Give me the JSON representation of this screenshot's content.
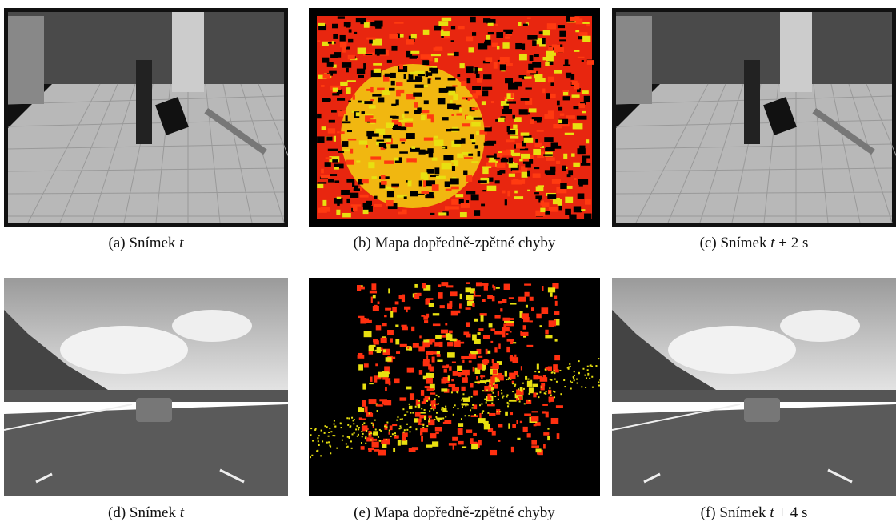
{
  "panels": [
    {
      "caption": {
        "label": "(a)",
        "text": "Snímek",
        "math": "t"
      }
    },
    {
      "caption": {
        "label": "(b)",
        "text": "Mapa dopředně-zpětné chyby"
      }
    },
    {
      "caption": {
        "label": "(c)",
        "text": "Snímek",
        "math": "t",
        "suffix": "+ 2 s"
      }
    },
    {
      "caption": {
        "label": "(d)",
        "text": "Snímek",
        "math": "t"
      }
    },
    {
      "caption": {
        "label": "(e)",
        "text": "Mapa dopředně-zpětné chyby"
      }
    },
    {
      "caption": {
        "label": "(f)",
        "text": "Snímek",
        "math": "t",
        "suffix": "+ 4 s"
      }
    }
  ]
}
